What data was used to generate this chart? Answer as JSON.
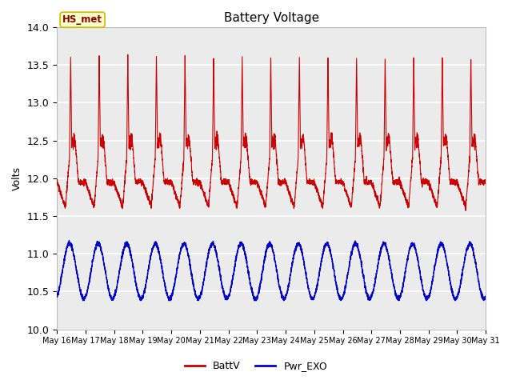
{
  "title": "Battery Voltage",
  "ylabel": "Volts",
  "ylim": [
    10.0,
    14.0
  ],
  "yticks": [
    10.0,
    10.5,
    11.0,
    11.5,
    12.0,
    12.5,
    13.0,
    13.5,
    14.0
  ],
  "x_tick_days": [
    16,
    17,
    18,
    19,
    20,
    21,
    22,
    23,
    24,
    25,
    26,
    27,
    28,
    29,
    30,
    31
  ],
  "n_days": 15,
  "batt_color": "#cc0000",
  "exo_color": "#0000cc",
  "plot_bg_color": "#ebebeb",
  "grid_color": "white",
  "fig_bg_color": "white",
  "legend_labels": [
    "BattV",
    "Pwr_EXO"
  ],
  "annotation_text": "HS_met",
  "annotation_bg": "#ffffcc",
  "annotation_border": "#ccbb00",
  "title_fontsize": 11,
  "axis_fontsize": 9,
  "legend_fontsize": 9
}
